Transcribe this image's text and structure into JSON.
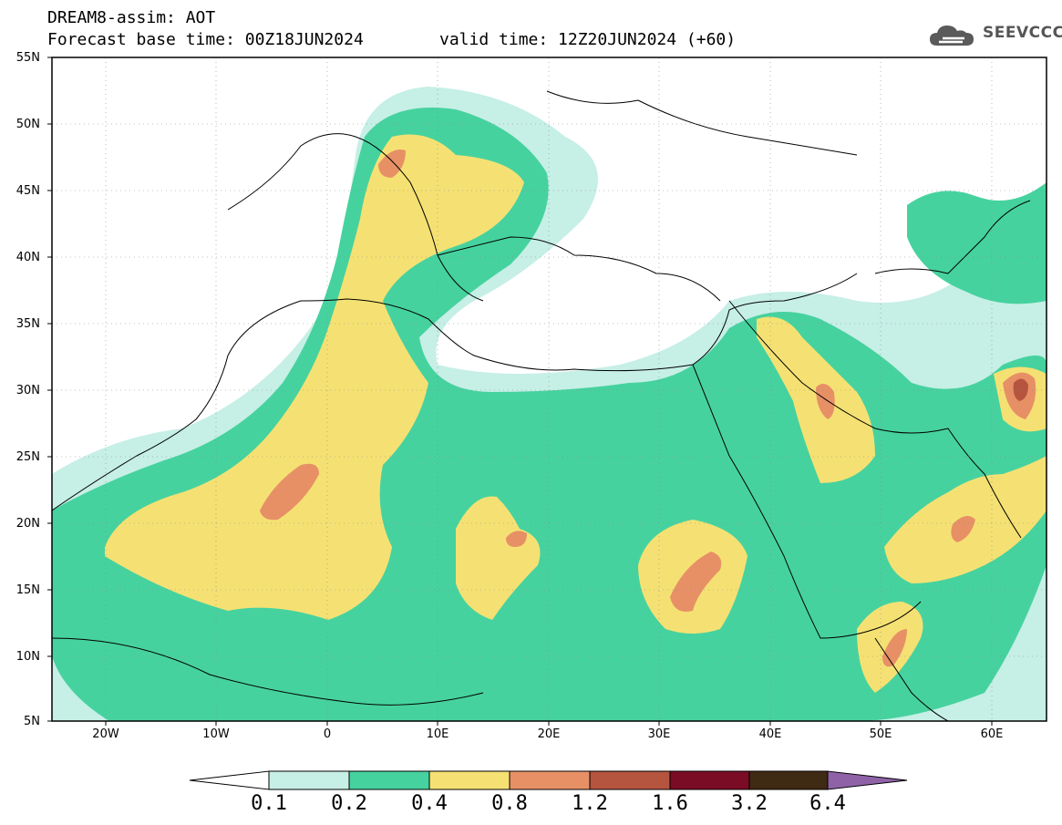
{
  "header": {
    "line1": "DREAM8-assim: AOT",
    "base_time": "Forecast base time: 00Z18JUN2024",
    "valid_time": "valid time: 12Z20JUN2024 (+60)"
  },
  "logo": {
    "text": "SEEVCCC",
    "icon": "cloud-icon"
  },
  "axes": {
    "lat_labels": [
      "55N",
      "50N",
      "45N",
      "40N",
      "35N",
      "30N",
      "25N",
      "20N",
      "15N",
      "10N",
      "5N"
    ],
    "lon_labels": [
      "20W",
      "10W",
      "0",
      "10E",
      "20E",
      "30E",
      "40E",
      "50E",
      "60E"
    ],
    "lat_range": [
      5,
      55
    ],
    "lon_range": [
      -25,
      65
    ]
  },
  "colorbar": {
    "thresholds": [
      "0.1",
      "0.2",
      "0.4",
      "0.8",
      "1.2",
      "1.6",
      "3.2",
      "6.4"
    ],
    "colors": [
      "#ffffff",
      "#c6efe6",
      "#46d29f",
      "#f5e173",
      "#e79066",
      "#b5543f",
      "#7a0c25",
      "#3f2a14",
      "#8f62a8"
    ]
  }
}
